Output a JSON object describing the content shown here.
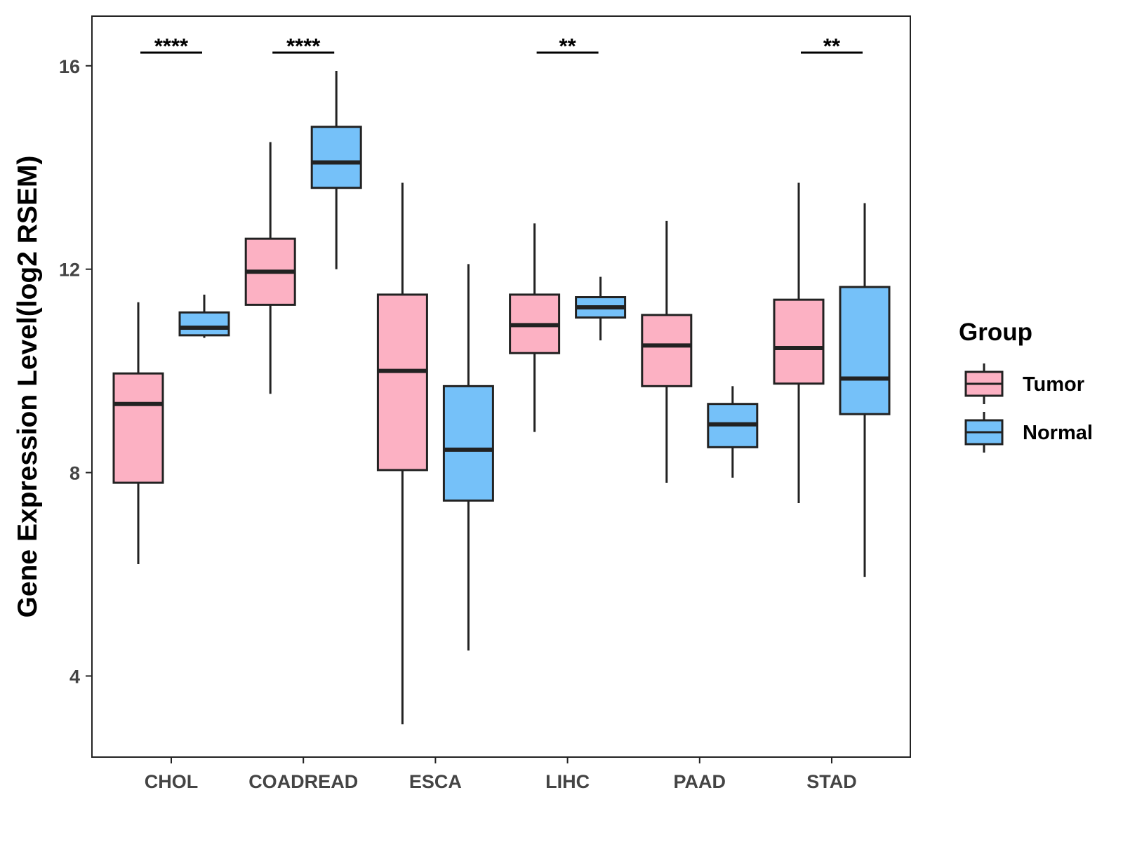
{
  "chart_data": {
    "type": "boxplot",
    "title": "",
    "xlabel": "",
    "ylabel": "Gene Expression Level(log2 RSEM)",
    "ylim": [
      2.4,
      16.95
    ],
    "yticks": [
      4,
      8,
      12,
      16
    ],
    "grid": false,
    "categories": [
      "CHOL",
      "COADREAD",
      "ESCA",
      "LIHC",
      "PAAD",
      "STAD"
    ],
    "legend": {
      "title": "Group",
      "position": "right",
      "entries": [
        {
          "name": "Tumor",
          "color": "#FCB1C3"
        },
        {
          "name": "Normal",
          "color": "#75C1F9"
        }
      ]
    },
    "series": [
      {
        "name": "Tumor",
        "color": "#FCB1C3",
        "boxes": [
          {
            "category": "CHOL",
            "min": 6.2,
            "q1": 7.8,
            "median": 9.35,
            "q3": 9.95,
            "max": 11.35
          },
          {
            "category": "COADREAD",
            "min": 9.55,
            "q1": 11.3,
            "median": 11.95,
            "q3": 12.6,
            "max": 14.5
          },
          {
            "category": "ESCA",
            "min": 3.05,
            "q1": 8.05,
            "median": 10.0,
            "q3": 11.5,
            "max": 13.7
          },
          {
            "category": "LIHC",
            "min": 8.8,
            "q1": 10.35,
            "median": 10.9,
            "q3": 11.5,
            "max": 12.9
          },
          {
            "category": "PAAD",
            "min": 7.8,
            "q1": 9.7,
            "median": 10.5,
            "q3": 11.1,
            "max": 12.95
          },
          {
            "category": "STAD",
            "min": 7.4,
            "q1": 9.75,
            "median": 10.45,
            "q3": 11.4,
            "max": 13.7
          }
        ]
      },
      {
        "name": "Normal",
        "color": "#75C1F9",
        "boxes": [
          {
            "category": "CHOL",
            "min": 10.65,
            "q1": 10.7,
            "median": 10.85,
            "q3": 11.15,
            "max": 11.5
          },
          {
            "category": "COADREAD",
            "min": 12.0,
            "q1": 13.6,
            "median": 14.1,
            "q3": 14.8,
            "max": 15.9
          },
          {
            "category": "ESCA",
            "min": 4.5,
            "q1": 7.45,
            "median": 8.45,
            "q3": 9.7,
            "max": 12.1
          },
          {
            "category": "LIHC",
            "min": 10.6,
            "q1": 11.05,
            "median": 11.25,
            "q3": 11.45,
            "max": 11.85
          },
          {
            "category": "PAAD",
            "min": 7.9,
            "q1": 8.5,
            "median": 8.95,
            "q3": 9.35,
            "max": 9.7
          },
          {
            "category": "STAD",
            "min": 5.95,
            "q1": 9.15,
            "median": 9.85,
            "q3": 11.65,
            "max": 13.3
          }
        ]
      }
    ],
    "significance": [
      {
        "category": "CHOL",
        "label": "****"
      },
      {
        "category": "COADREAD",
        "label": "****"
      },
      {
        "category": "LIHC",
        "label": "**"
      },
      {
        "category": "STAD",
        "label": "**"
      }
    ]
  }
}
